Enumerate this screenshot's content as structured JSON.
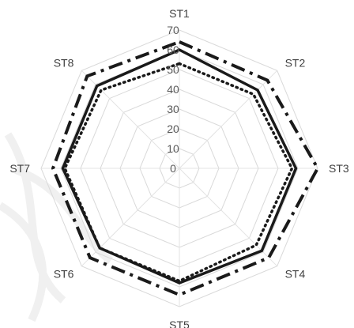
{
  "chart_data": {
    "type": "radar",
    "title": "",
    "categories": [
      "ST1",
      "ST2",
      "ST3",
      "ST4",
      "ST5",
      "ST6",
      "ST7",
      "ST8"
    ],
    "rlim": [
      0,
      70
    ],
    "ticks": [
      0,
      10,
      20,
      30,
      40,
      50,
      60,
      70
    ],
    "grid": true,
    "legend": "none",
    "series": [
      {
        "values": [
          60,
          56,
          59,
          59,
          58,
          57,
          59,
          59
        ],
        "color": "#1a1a1a",
        "dash": "solid"
      },
      {
        "values": [
          64,
          63,
          70,
          64,
          64,
          64,
          64,
          66
        ],
        "color": "#1a1a1a",
        "dash": "dashdot"
      },
      {
        "values": [
          53,
          53,
          57,
          55,
          57,
          57,
          58,
          56
        ],
        "color": "#1a1a1a",
        "dash": "dot"
      }
    ]
  }
}
